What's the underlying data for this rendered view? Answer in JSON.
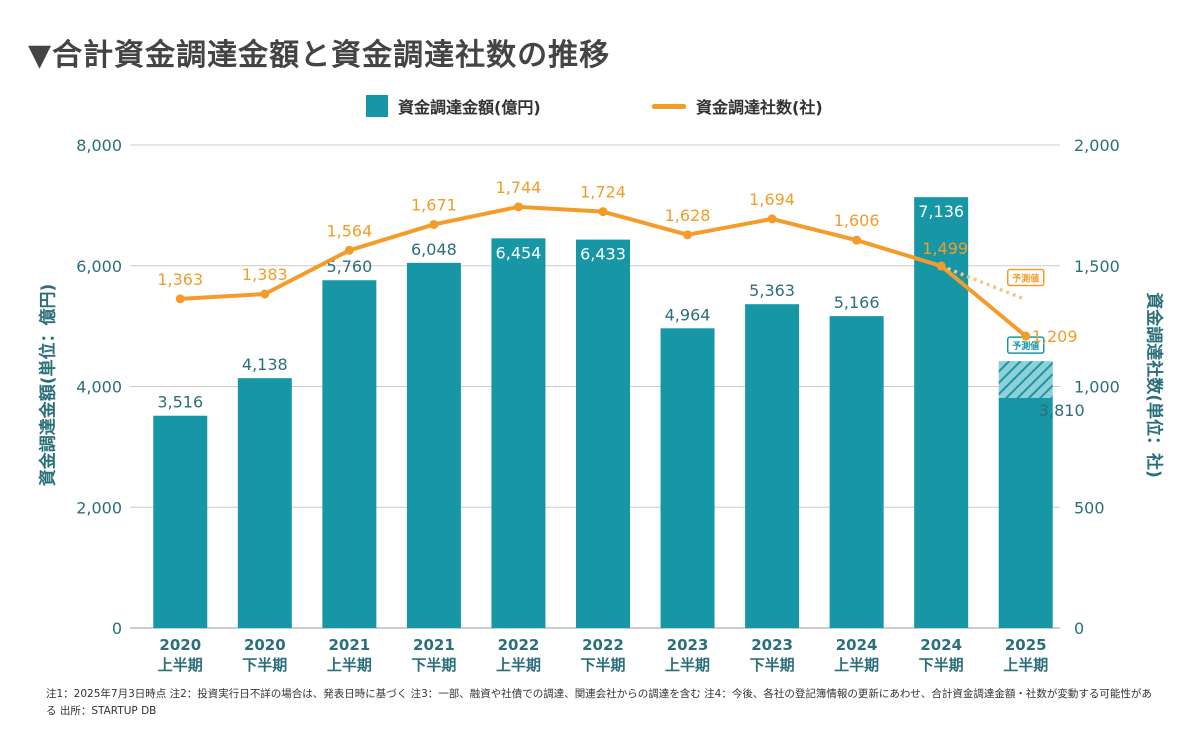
{
  "title": "▼合計資金調達金額と資金調達社数の推移",
  "notes": "注1：2025年7月3日時点 注2：投資実行日不詳の場合は、発表日時に基づく 注3：一部、融資や社債での調達、関連会社からの調達を含む 注4：今後、各社の登記簿情報の更新にあわせ、合計資金調達金額・社数が変動する可能性がある 出所：STARTUP DB",
  "colors": {
    "bar": "#1797a6",
    "line": "#f39c2a",
    "axis_text": "#2b6f7a",
    "grid": "#cccccc",
    "forecast_badge": "#1797a6"
  },
  "chart_data": {
    "type": "bar",
    "categories": [
      [
        "2020",
        "上半期"
      ],
      [
        "2020",
        "下半期"
      ],
      [
        "2021",
        "上半期"
      ],
      [
        "2021",
        "下半期"
      ],
      [
        "2022",
        "上半期"
      ],
      [
        "2022",
        "下半期"
      ],
      [
        "2023",
        "上半期"
      ],
      [
        "2023",
        "下半期"
      ],
      [
        "2024",
        "上半期"
      ],
      [
        "2024",
        "下半期"
      ],
      [
        "2025",
        "上半期"
      ]
    ],
    "series": [
      {
        "name": "資金調達金額(億円)",
        "type": "bar",
        "axis": "left",
        "values": [
          3516,
          4138,
          5760,
          6048,
          6454,
          6433,
          4964,
          5363,
          5166,
          7136,
          3810
        ],
        "labels": [
          "3,516",
          "4,138",
          "5,760",
          "6,048",
          "6,454",
          "6,433",
          "4,964",
          "5,363",
          "5,166",
          "7,136",
          "3,810"
        ],
        "forecast_value": 4420,
        "forecast_label": "予測値"
      },
      {
        "name": "資金調達社数(社)",
        "type": "line",
        "axis": "right",
        "values": [
          1363,
          1383,
          1564,
          1671,
          1744,
          1724,
          1628,
          1694,
          1606,
          1499,
          1209
        ],
        "labels": [
          "1,363",
          "1,383",
          "1,564",
          "1,671",
          "1,744",
          "1,724",
          "1,628",
          "1,694",
          "1,606",
          "1,499",
          "1,209"
        ],
        "forecast_value": 1360,
        "forecast_label": "予測値"
      }
    ],
    "ylabel_left": "資金調達金額(単位：億円)",
    "ylabel_right": "資金調達社数(単位：社)",
    "ylim_left": [
      0,
      8000
    ],
    "ylim_right": [
      0,
      2000
    ],
    "yticks_left": [
      0,
      2000,
      4000,
      6000,
      8000
    ],
    "yticks_left_labels": [
      "0",
      "2,000",
      "4,000",
      "6,000",
      "8,000"
    ],
    "yticks_right": [
      0,
      500,
      1000,
      1500,
      2000
    ],
    "yticks_right_labels": [
      "0",
      "500",
      "1,000",
      "1,500",
      "2,000"
    ],
    "grid": true,
    "legend": "top-center"
  }
}
